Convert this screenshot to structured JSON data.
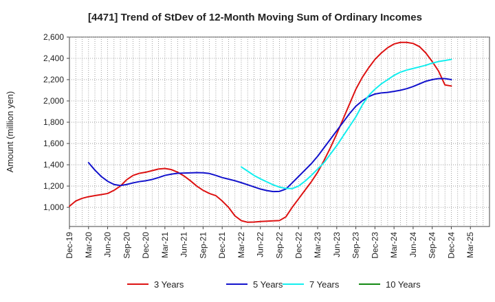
{
  "chart_data": {
    "type": "line",
    "title": "[4471]  Trend of StDev of 12-Month Moving Sum of Ordinary Incomes",
    "xlabel": "",
    "ylabel": "Amount (million yen)",
    "ylim": [
      820,
      2600
    ],
    "yticks": [
      1000,
      1200,
      1400,
      1600,
      1800,
      2000,
      2200,
      2400,
      2600
    ],
    "ytick_labels": [
      "1,000",
      "1,200",
      "1,400",
      "1,600",
      "1,800",
      "2,000",
      "2,200",
      "2,400",
      "2,600"
    ],
    "xlim": [
      0,
      66
    ],
    "xtick_labels": [
      "Dec-19",
      "Mar-20",
      "Jun-20",
      "Sep-20",
      "Dec-20",
      "Mar-21",
      "Jun-21",
      "Sep-21",
      "Dec-21",
      "Mar-22",
      "Jun-22",
      "Sep-22",
      "Dec-22",
      "Mar-23",
      "Jun-23",
      "Sep-23",
      "Dec-23",
      "Mar-24",
      "Jun-24",
      "Sep-24",
      "Dec-24",
      "Mar-25"
    ],
    "grid": true,
    "legend_position": "bottom",
    "series": [
      {
        "name": "3 Years",
        "color": "#dd1111",
        "x": [
          0,
          1,
          2,
          3,
          4,
          5,
          6,
          7,
          8,
          9,
          10,
          11,
          12,
          13,
          14,
          15,
          16,
          17,
          18,
          19,
          20,
          21,
          22,
          23,
          24,
          25,
          26,
          27,
          28,
          29,
          30,
          31,
          32,
          33,
          34,
          35,
          36,
          37,
          38,
          39,
          40,
          41,
          42,
          43,
          44,
          45,
          46,
          47,
          48,
          49,
          50,
          51,
          52,
          53,
          54,
          55,
          56,
          57,
          58,
          59,
          60
        ],
        "values": [
          1010,
          1060,
          1085,
          1100,
          1110,
          1120,
          1130,
          1160,
          1200,
          1260,
          1300,
          1320,
          1330,
          1345,
          1360,
          1365,
          1355,
          1330,
          1295,
          1250,
          1200,
          1160,
          1130,
          1110,
          1060,
          1000,
          920,
          875,
          860,
          862,
          867,
          870,
          873,
          876,
          910,
          1000,
          1080,
          1160,
          1240,
          1330,
          1440,
          1560,
          1690,
          1830,
          1970,
          2110,
          2220,
          2310,
          2390,
          2450,
          2500,
          2535,
          2550,
          2550,
          2540,
          2510,
          2450,
          2370,
          2280,
          2150,
          2140
        ]
      },
      {
        "name": "5 Years",
        "color": "#1111cc",
        "x": [
          3,
          4,
          5,
          6,
          7,
          8,
          9,
          10,
          11,
          12,
          13,
          14,
          15,
          16,
          17,
          18,
          19,
          20,
          21,
          22,
          23,
          24,
          25,
          26,
          27,
          28,
          29,
          30,
          31,
          32,
          33,
          34,
          35,
          36,
          37,
          38,
          39,
          40,
          41,
          42,
          43,
          44,
          45,
          46,
          47,
          48,
          49,
          50,
          51,
          52,
          53,
          54,
          55,
          56,
          57,
          58,
          59,
          60
        ],
        "values": [
          1420,
          1350,
          1290,
          1245,
          1215,
          1205,
          1215,
          1230,
          1242,
          1250,
          1262,
          1280,
          1300,
          1312,
          1320,
          1322,
          1324,
          1326,
          1325,
          1318,
          1300,
          1280,
          1265,
          1250,
          1232,
          1212,
          1192,
          1172,
          1158,
          1148,
          1150,
          1172,
          1230,
          1290,
          1350,
          1410,
          1480,
          1560,
          1640,
          1720,
          1800,
          1880,
          1950,
          2000,
          2040,
          2065,
          2075,
          2080,
          2090,
          2100,
          2115,
          2135,
          2160,
          2185,
          2200,
          2210,
          2210,
          2200
        ]
      },
      {
        "name": "7 Years",
        "color": "#11eeee",
        "x": [
          27,
          28,
          29,
          30,
          31,
          32,
          33,
          34,
          35,
          36,
          37,
          38,
          39,
          40,
          41,
          42,
          43,
          44,
          45,
          46,
          47,
          48,
          49,
          50,
          51,
          52,
          53,
          54,
          55,
          56,
          57,
          58,
          59,
          60
        ],
        "values": [
          1380,
          1340,
          1300,
          1268,
          1240,
          1212,
          1190,
          1178,
          1176,
          1200,
          1245,
          1300,
          1360,
          1420,
          1500,
          1580,
          1670,
          1760,
          1850,
          1960,
          2050,
          2110,
          2160,
          2200,
          2240,
          2270,
          2290,
          2305,
          2320,
          2335,
          2355,
          2370,
          2380,
          2390
        ]
      },
      {
        "name": "10 Years",
        "color": "#118811",
        "x": [],
        "values": []
      }
    ]
  }
}
